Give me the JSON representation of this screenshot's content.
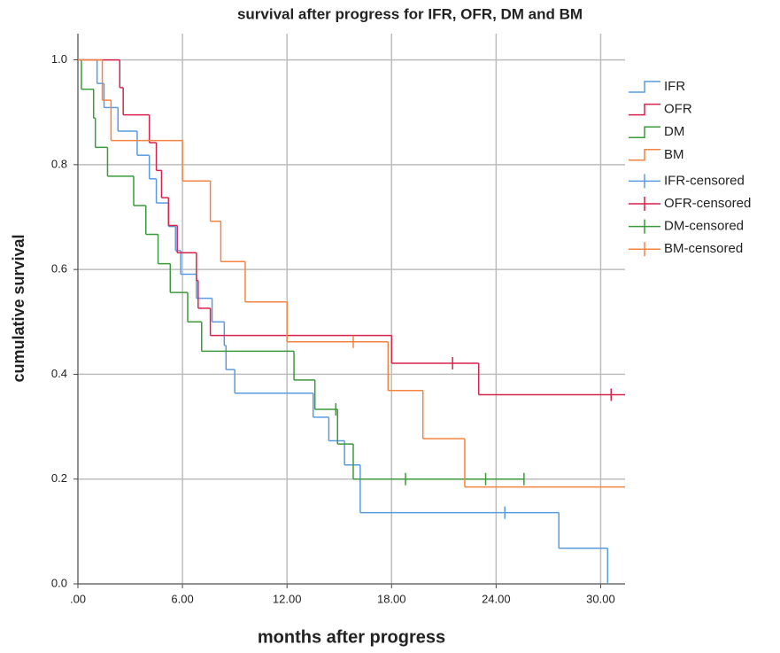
{
  "chart_data": {
    "type": "kaplan-meier",
    "title": "survival after progress for IFR, OFR, DM and BM",
    "x_label": "months after progress",
    "y_label": "cumulative survival",
    "xlim": [
      0,
      31.4
    ],
    "ylim": [
      0,
      1.05
    ],
    "xticks": [
      {
        "value": 0,
        "label": ".00"
      },
      {
        "value": 6,
        "label": "6.00"
      },
      {
        "value": 12,
        "label": "12.00"
      },
      {
        "value": 18,
        "label": "18.00"
      },
      {
        "value": 24,
        "label": "24.00"
      },
      {
        "value": 30,
        "label": "30.00"
      }
    ],
    "yticks": [
      {
        "value": 0,
        "label": "0.0"
      },
      0.2,
      0.4,
      0.6,
      0.8,
      {
        "value": 1,
        "label": "1.0"
      }
    ],
    "grid": true,
    "legend": "right",
    "series": [
      {
        "name": "IFR",
        "color": "#5a9be0",
        "x": [
          0,
          1.1,
          1.5,
          2.3,
          3.4,
          4.1,
          4.5,
          5.2,
          5.6,
          5.9,
          6.8,
          7.7,
          8.4,
          8.5,
          9.0,
          13.5,
          14.4,
          15.3,
          16.2,
          27.6,
          30.4
        ],
        "values": [
          1,
          0.955,
          0.909,
          0.864,
          0.818,
          0.773,
          0.727,
          0.682,
          0.636,
          0.591,
          0.545,
          0.5,
          0.455,
          0.409,
          0.364,
          0.318,
          0.273,
          0.227,
          0.136,
          0.068,
          0
        ],
        "censored": {
          "name": "IFR-censored",
          "x": [
            24.5
          ],
          "values": [
            0.136
          ]
        }
      },
      {
        "name": "OFR",
        "color": "#d8224c",
        "x": [
          0,
          2.4,
          2.6,
          4.1,
          4.5,
          4.8,
          5.2,
          5.7,
          6.8,
          6.9,
          7.6,
          18.0,
          23.0
        ],
        "values": [
          1,
          0.947,
          0.895,
          0.842,
          0.789,
          0.737,
          0.684,
          0.632,
          0.579,
          0.526,
          0.474,
          0.421,
          0.361
        ],
        "censored": {
          "name": "OFR-censored",
          "x": [
            21.5,
            30.6
          ],
          "values": [
            0.421,
            0.361
          ]
        }
      },
      {
        "name": "DM",
        "color": "#3b9a3b",
        "x": [
          0,
          0.2,
          0.9,
          1.0,
          1.7,
          3.2,
          3.9,
          4.6,
          5.3,
          6.3,
          7.1,
          12.4,
          13.6,
          14.9,
          15.8
        ],
        "values": [
          1,
          0.944,
          0.889,
          0.833,
          0.778,
          0.722,
          0.667,
          0.611,
          0.556,
          0.5,
          0.444,
          0.389,
          0.333,
          0.267,
          0.2
        ],
        "censored": {
          "name": "DM-censored",
          "x": [
            14.8,
            18.8,
            23.4,
            25.6
          ],
          "values": [
            0.333,
            0.2,
            0.2,
            0.2
          ]
        }
      },
      {
        "name": "BM",
        "color": "#f58440",
        "x": [
          0,
          1.4,
          1.9,
          6.0,
          7.6,
          8.2,
          9.6,
          12.0,
          17.8,
          19.8,
          22.2
        ],
        "values": [
          1,
          0.923,
          0.846,
          0.769,
          0.692,
          0.615,
          0.538,
          0.462,
          0.369,
          0.277,
          0.185
        ],
        "censored": {
          "name": "BM-censored",
          "x": [
            15.8
          ],
          "values": [
            0.462
          ]
        }
      }
    ]
  }
}
